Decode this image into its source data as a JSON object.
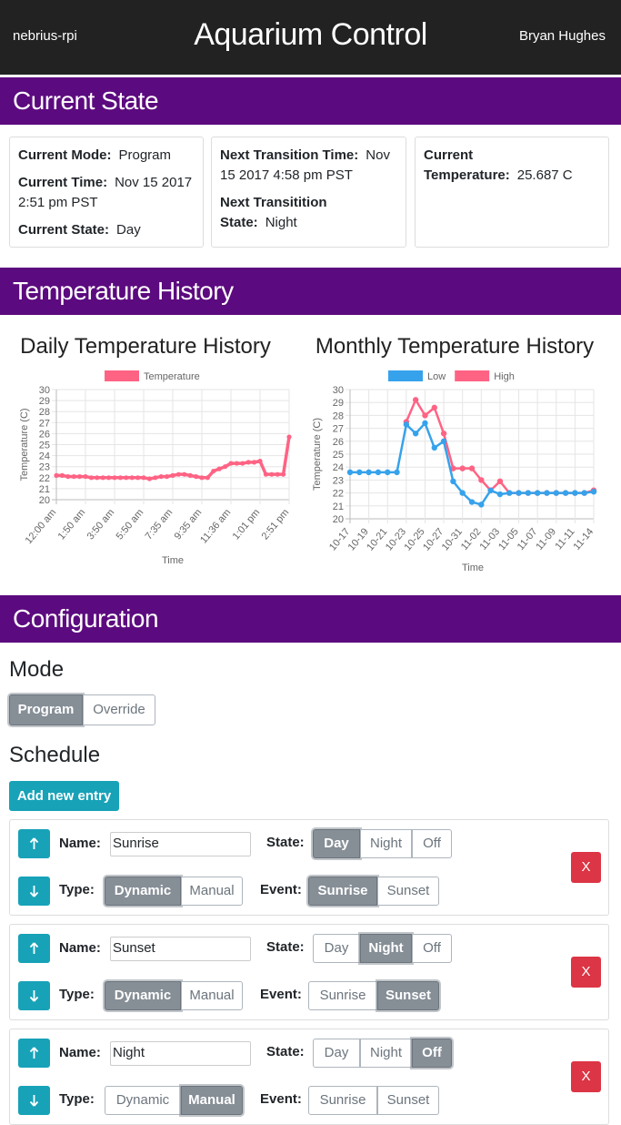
{
  "header": {
    "host": "nebrius-rpi",
    "title": "Aquarium Control",
    "user": "Bryan Hughes"
  },
  "current_state": {
    "heading": "Current State",
    "cards": [
      [
        {
          "label": "Current Mode:",
          "value": "Program"
        },
        {
          "label": "Current Time:",
          "value": "Nov 15 2017 2:51 pm PST"
        },
        {
          "label": "Current State:",
          "value": "Day"
        }
      ],
      [
        {
          "label": "Next Transition Time:",
          "value": "Nov 15 2017 4:58 pm PST"
        },
        {
          "label": "Next Transitition State:",
          "value": "Night"
        }
      ],
      [
        {
          "label": "Current Temperature:",
          "value": "25.687 C"
        }
      ]
    ]
  },
  "temperature_history": {
    "heading": "Temperature History"
  },
  "chart_data": [
    {
      "type": "line",
      "title": "Daily Temperature History",
      "xlabel": "Time",
      "ylabel": "Temperature (C)",
      "categories": [
        "12:00 am",
        null,
        null,
        null,
        null,
        "1:50 am",
        null,
        null,
        null,
        null,
        "3:50 am",
        null,
        null,
        null,
        null,
        "5:50 am",
        null,
        null,
        null,
        null,
        "7:35 am",
        null,
        null,
        null,
        null,
        "9:35 am",
        null,
        null,
        null,
        null,
        "11:36 am",
        null,
        null,
        null,
        null,
        "1:01 pm",
        null,
        null,
        null,
        null,
        "2:51 pm"
      ],
      "series": [
        {
          "name": "Temperature",
          "color": "#ff6384",
          "values": [
            22.2,
            22.2,
            22.1,
            22.1,
            22.1,
            22.1,
            22.0,
            22.0,
            22.0,
            22.0,
            22.0,
            22.0,
            22.0,
            22.0,
            22.0,
            22.0,
            21.9,
            22.0,
            22.1,
            22.1,
            22.2,
            22.3,
            22.3,
            22.2,
            22.1,
            22.0,
            22.0,
            22.6,
            22.8,
            23.0,
            23.3,
            23.3,
            23.3,
            23.4,
            23.4,
            23.5,
            22.3,
            22.3,
            22.3,
            22.3,
            25.7
          ]
        }
      ],
      "ylim": [
        20,
        30
      ],
      "yticks": [
        20,
        21,
        22,
        23,
        24,
        25,
        26,
        27,
        28,
        29,
        30
      ],
      "grid": true,
      "legend": "top"
    },
    {
      "type": "line",
      "title": "Monthly Temperature History",
      "xlabel": "Time",
      "ylabel": "Temperature (C)",
      "categories": [
        "10-17",
        null,
        "10-19",
        null,
        "10-21",
        null,
        "10-23",
        null,
        "10-25",
        null,
        "10-27",
        null,
        "10-31",
        null,
        "11-02",
        null,
        "11-03",
        null,
        "11-05",
        null,
        "11-07",
        null,
        "11-09",
        null,
        "11-11",
        null,
        "11-14"
      ],
      "series": [
        {
          "name": "Low",
          "color": "#36a2eb",
          "values": [
            23.6,
            23.6,
            23.6,
            23.6,
            23.6,
            23.6,
            27.3,
            26.6,
            27.4,
            25.5,
            26.0,
            22.9,
            22.0,
            21.3,
            21.1,
            22.2,
            21.9,
            22.0,
            22.0,
            22.0,
            22.0,
            22.0,
            22.0,
            22.0,
            22.0,
            22.0,
            22.1
          ]
        },
        {
          "name": "High",
          "color": "#ff6384",
          "values": [
            null,
            null,
            null,
            null,
            null,
            null,
            27.5,
            29.2,
            28.0,
            28.6,
            26.6,
            23.9,
            23.9,
            23.9,
            23.0,
            22.2,
            22.9,
            22.0,
            22.0,
            22.0,
            22.0,
            22.0,
            22.0,
            22.0,
            22.0,
            22.0,
            22.2
          ]
        }
      ],
      "ylim": [
        20,
        30
      ],
      "yticks": [
        20,
        21,
        22,
        23,
        24,
        25,
        26,
        27,
        28,
        29,
        30
      ],
      "grid": true,
      "legend": "top"
    }
  ],
  "configuration": {
    "heading": "Configuration",
    "mode": {
      "heading": "Mode",
      "options": [
        "Program",
        "Override"
      ],
      "active": 0
    },
    "schedule": {
      "heading": "Schedule",
      "add_label": "Add new entry",
      "delete_label": "X",
      "labels": {
        "name": "Name:",
        "state": "State:",
        "type": "Type:",
        "event": "Event:"
      },
      "state_options": [
        "Day",
        "Night",
        "Off"
      ],
      "type_options": [
        "Dynamic",
        "Manual"
      ],
      "event_options": [
        "Sunrise",
        "Sunset"
      ],
      "entries": [
        {
          "name": "Sunrise",
          "state": 0,
          "type": 0,
          "event": 0
        },
        {
          "name": "Sunset",
          "state": 1,
          "type": 0,
          "event": 1
        },
        {
          "name": "Night",
          "state": 2,
          "type": 1
        }
      ]
    }
  }
}
